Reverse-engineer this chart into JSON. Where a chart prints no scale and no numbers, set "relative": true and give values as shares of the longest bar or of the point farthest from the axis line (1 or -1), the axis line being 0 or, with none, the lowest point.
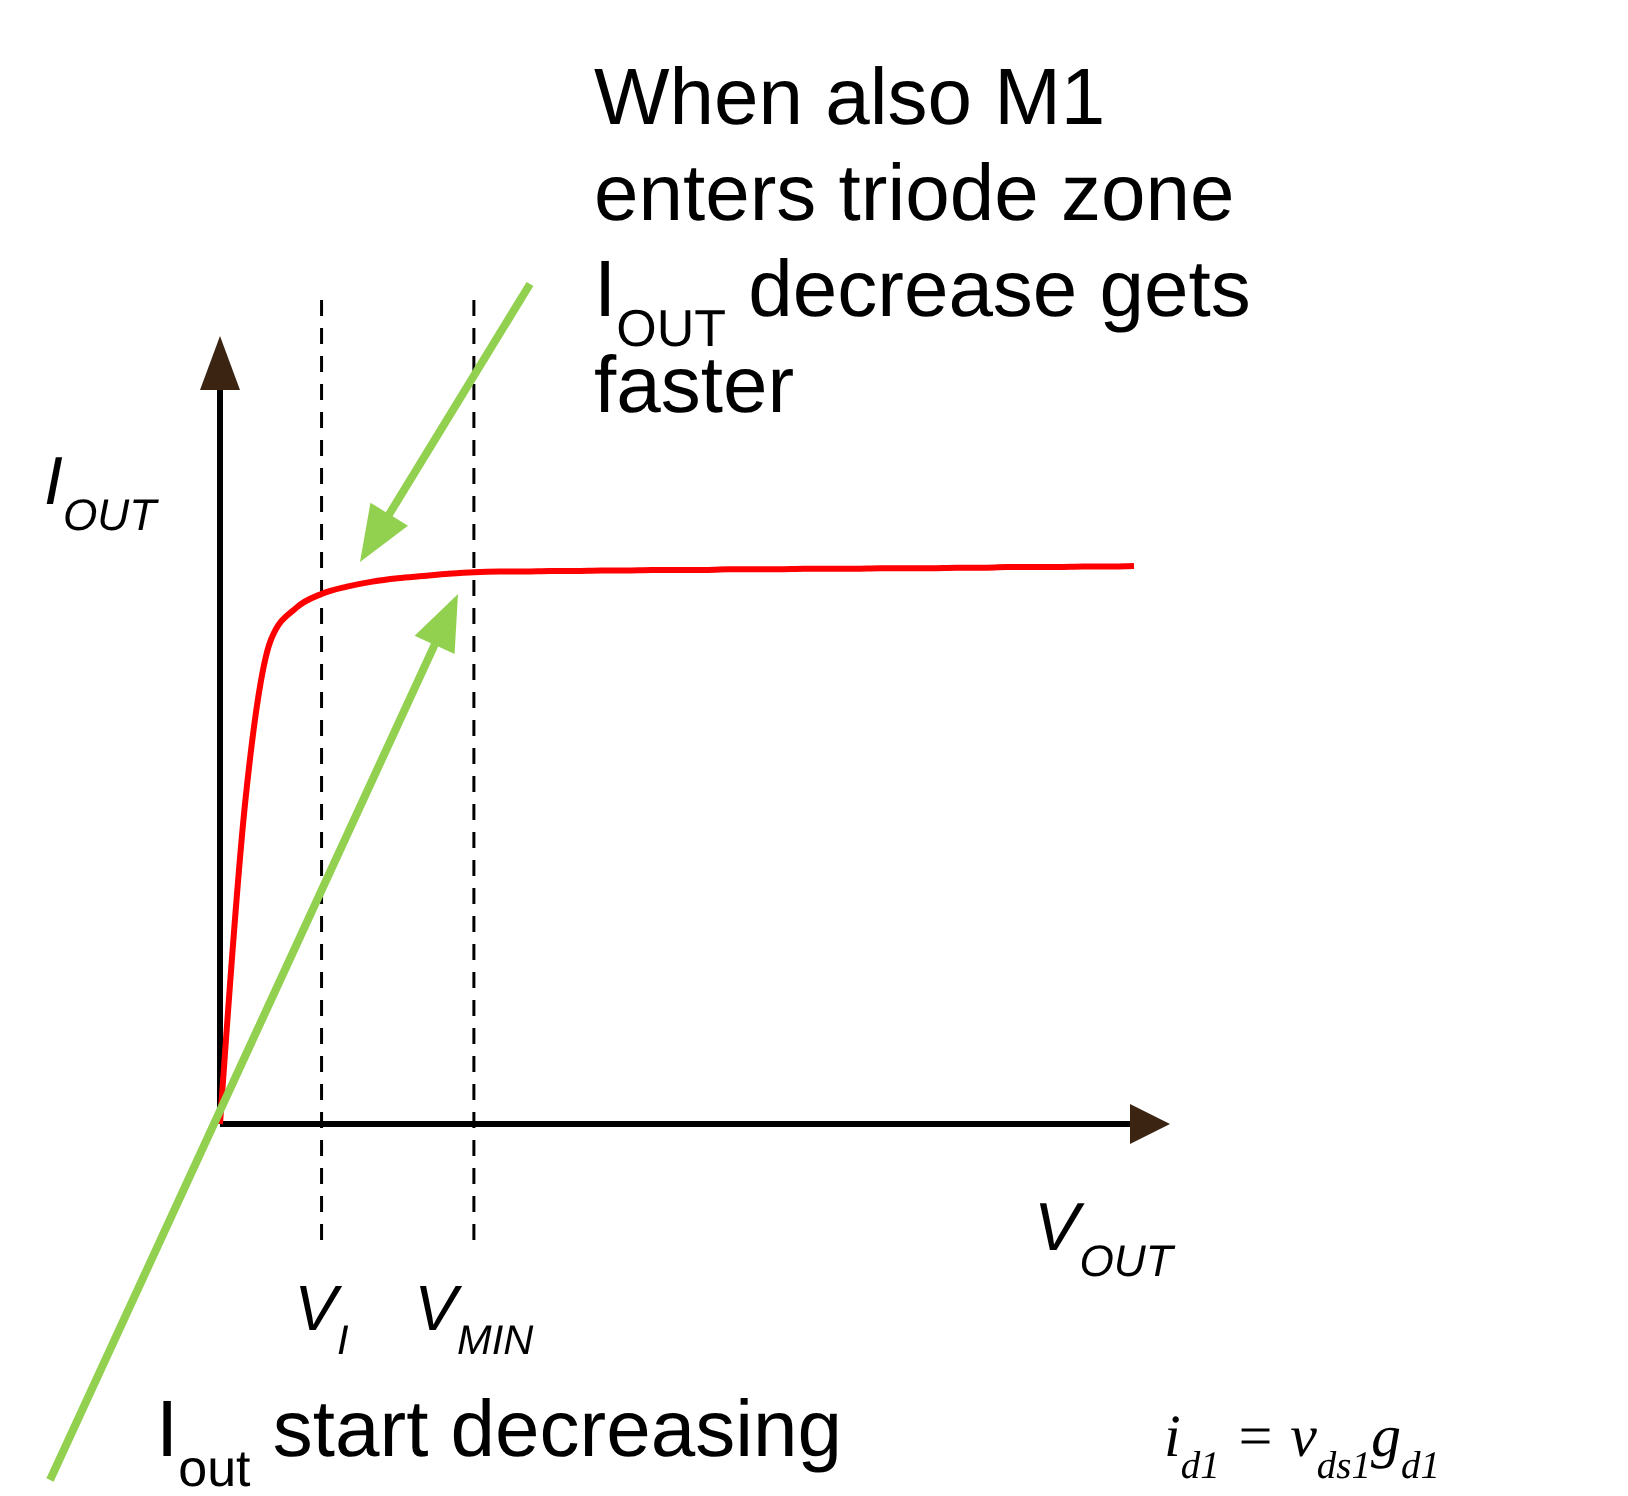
{
  "chart_data": {
    "type": "line",
    "relative": true,
    "xlabel": "V$_{OUT}$",
    "ylabel": "I$_{OUT}$",
    "categories": [
      null,
      null,
      null,
      null,
      "V$_{I}$",
      null,
      null,
      null,
      null,
      null,
      "V$_{MIN}$",
      null,
      null,
      null,
      null,
      null,
      null,
      null,
      null,
      null,
      null,
      null,
      null,
      null,
      null,
      null,
      null,
      null,
      null,
      null,
      null,
      null,
      null,
      null,
      null,
      null,
      null
    ],
    "series": [
      {
        "color": "#ff0000",
        "values": [
          0,
          0.58,
          0.867,
          0.925,
          0.95,
          0.963,
          0.972,
          0.978,
          0.982,
          0.986,
          0.989,
          0.99,
          0.99,
          0.991,
          0.991,
          0.992,
          0.992,
          0.993,
          0.993,
          0.993,
          0.994,
          0.994,
          0.994,
          0.995,
          0.995,
          0.995,
          0.996,
          0.996,
          0.996,
          0.997,
          0.997,
          0.998,
          0.998,
          0.998,
          0.999,
          0.999,
          1
        ]
      }
    ],
    "ref_lines": [
      {
        "axis": "x",
        "value": "V$_{I}$",
        "line_style": "dashed"
      },
      {
        "axis": "x",
        "value": "V$_{MIN}$",
        "line_style": "dashed"
      }
    ],
    "annotations": [
      "When also M1 enters triode zone I$_{OUT}$ decrease gets faster",
      "I$_{out}$ start decreasing",
      "i$_{d1}$ = v$_{ds1}$g$_{d1}$"
    ]
  }
}
